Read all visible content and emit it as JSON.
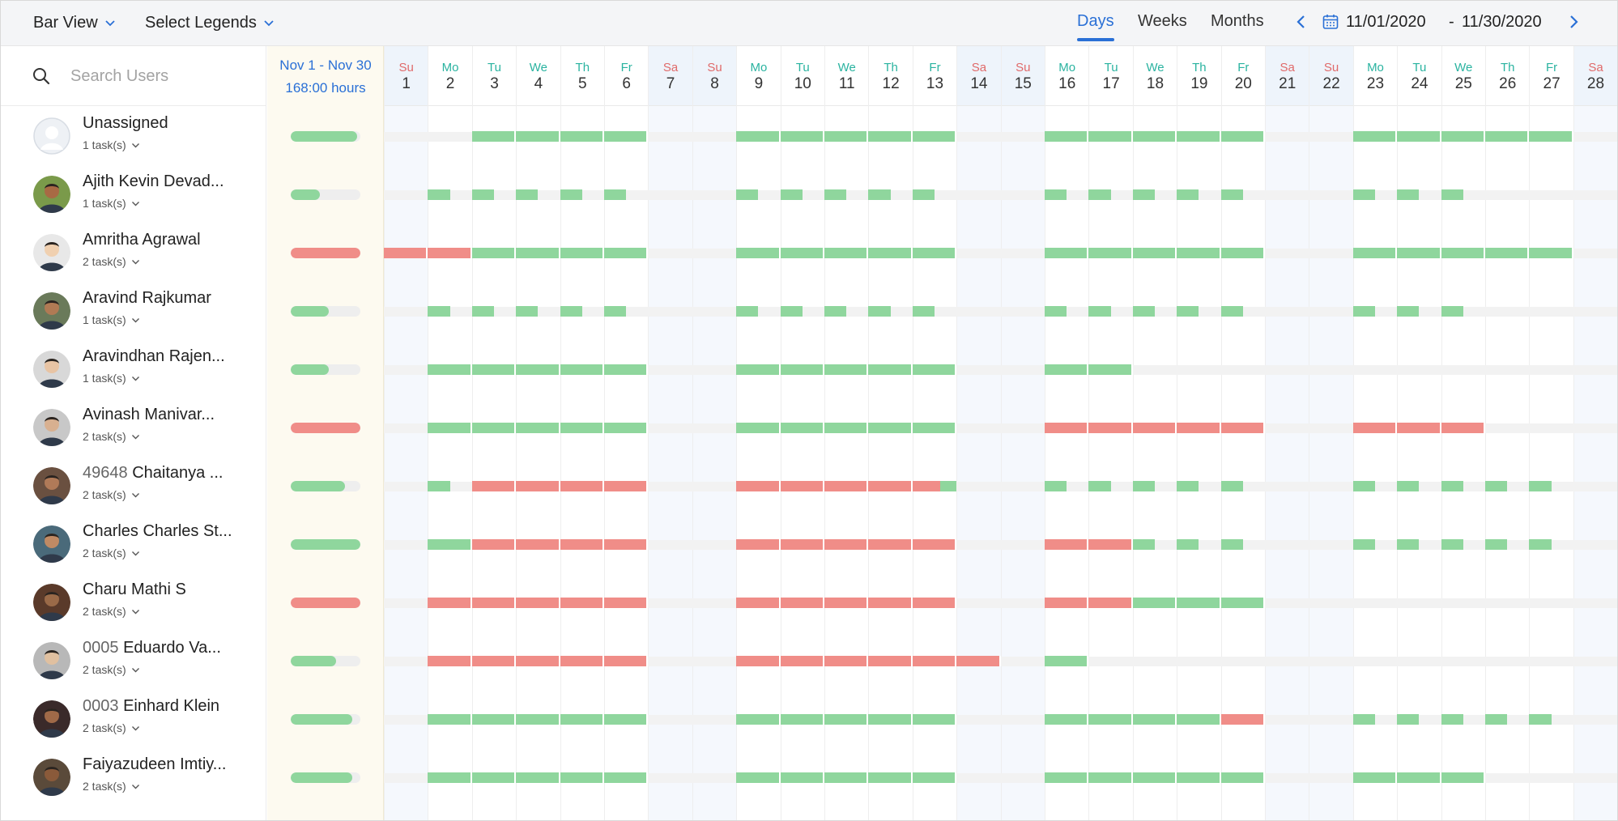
{
  "toolbar": {
    "view_label": "Bar View",
    "legends_label": "Select Legends",
    "tabs": [
      {
        "label": "Days",
        "active": true
      },
      {
        "label": "Weeks",
        "active": false
      },
      {
        "label": "Months",
        "active": false
      }
    ],
    "date_start": "11/01/2020",
    "date_sep": "-",
    "date_end": "11/30/2020",
    "accent_color": "#2a70d6"
  },
  "search": {
    "placeholder": "Search Users"
  },
  "summary": {
    "range": "Nov 1 - Nov 30",
    "hours": "168:00 hours"
  },
  "colors": {
    "ok": "#8fd69d",
    "over": "#f08d88",
    "track": "#f2f2f2",
    "weekday_header": "#2ab3a0",
    "weekend_header": "#e06a6a"
  },
  "days": [
    {
      "dn": "Su",
      "dd": "1",
      "weekend": true
    },
    {
      "dn": "Mo",
      "dd": "2",
      "weekend": false
    },
    {
      "dn": "Tu",
      "dd": "3",
      "weekend": false
    },
    {
      "dn": "We",
      "dd": "4",
      "weekend": false
    },
    {
      "dn": "Th",
      "dd": "5",
      "weekend": false
    },
    {
      "dn": "Fr",
      "dd": "6",
      "weekend": false
    },
    {
      "dn": "Sa",
      "dd": "7",
      "weekend": true
    },
    {
      "dn": "Su",
      "dd": "8",
      "weekend": true
    },
    {
      "dn": "Mo",
      "dd": "9",
      "weekend": false
    },
    {
      "dn": "Tu",
      "dd": "10",
      "weekend": false
    },
    {
      "dn": "We",
      "dd": "11",
      "weekend": false
    },
    {
      "dn": "Th",
      "dd": "12",
      "weekend": false
    },
    {
      "dn": "Fr",
      "dd": "13",
      "weekend": false
    },
    {
      "dn": "Sa",
      "dd": "14",
      "weekend": true
    },
    {
      "dn": "Su",
      "dd": "15",
      "weekend": true
    },
    {
      "dn": "Mo",
      "dd": "16",
      "weekend": false
    },
    {
      "dn": "Tu",
      "dd": "17",
      "weekend": false
    },
    {
      "dn": "We",
      "dd": "18",
      "weekend": false
    },
    {
      "dn": "Th",
      "dd": "19",
      "weekend": false
    },
    {
      "dn": "Fr",
      "dd": "20",
      "weekend": false
    },
    {
      "dn": "Sa",
      "dd": "21",
      "weekend": true
    },
    {
      "dn": "Su",
      "dd": "22",
      "weekend": true
    },
    {
      "dn": "Mo",
      "dd": "23",
      "weekend": false
    },
    {
      "dn": "Tu",
      "dd": "24",
      "weekend": false
    },
    {
      "dn": "We",
      "dd": "25",
      "weekend": false
    },
    {
      "dn": "Th",
      "dd": "26",
      "weekend": false
    },
    {
      "dn": "Fr",
      "dd": "27",
      "weekend": false
    },
    {
      "dn": "Sa",
      "dd": "28",
      "weekend": true
    }
  ],
  "users": [
    {
      "id": "",
      "name": "Unassigned",
      "tasks": "1 task(s)",
      "avatar": "placeholder",
      "summary_fill": 0.95,
      "summary_status": "ok",
      "days": [
        "",
        "",
        "ok",
        "ok",
        "ok",
        "ok",
        "",
        "",
        "ok",
        "ok",
        "ok",
        "ok",
        "ok",
        "",
        "",
        "ok",
        "ok",
        "ok",
        "ok",
        "ok",
        "",
        "",
        "ok",
        "ok",
        "ok",
        "ok",
        "ok",
        ""
      ]
    },
    {
      "id": "",
      "name": "Ajith Kevin Devad...",
      "tasks": "1 task(s)",
      "avatar": "photo",
      "summary_fill": 0.42,
      "summary_status": "ok",
      "days": [
        "",
        "ok-p",
        "ok-p",
        "ok-p",
        "ok-p",
        "ok-p",
        "",
        "",
        "ok-p",
        "ok-p",
        "ok-p",
        "ok-p",
        "ok-p",
        "",
        "",
        "ok-p",
        "ok-p",
        "ok-p",
        "ok-p",
        "ok-p",
        "",
        "",
        "ok-p",
        "ok-p",
        "ok-p",
        "",
        "",
        ""
      ]
    },
    {
      "id": "",
      "name": "Amritha Agrawal",
      "tasks": "2 task(s)",
      "avatar": "photo",
      "summary_fill": 1.0,
      "summary_status": "over",
      "days": [
        "over",
        "over",
        "ok",
        "ok",
        "ok",
        "ok",
        "",
        "",
        "ok",
        "ok",
        "ok",
        "ok",
        "ok",
        "",
        "",
        "ok",
        "ok",
        "ok",
        "ok",
        "ok",
        "",
        "",
        "ok",
        "ok",
        "ok",
        "ok",
        "ok",
        ""
      ]
    },
    {
      "id": "",
      "name": "Aravind Rajkumar",
      "tasks": "1 task(s)",
      "avatar": "photo",
      "summary_fill": 0.55,
      "summary_status": "ok",
      "days": [
        "",
        "ok-p",
        "ok-p",
        "ok-p",
        "ok-p",
        "ok-p",
        "",
        "",
        "ok-p",
        "ok-p",
        "ok-p",
        "ok-p",
        "ok-p",
        "",
        "",
        "ok-p",
        "ok-p",
        "ok-p",
        "ok-p",
        "ok-p",
        "",
        "",
        "ok-p",
        "ok-p",
        "ok-p",
        "",
        "",
        ""
      ]
    },
    {
      "id": "",
      "name": "Aravindhan Rajen...",
      "tasks": "1 task(s)",
      "avatar": "photo",
      "summary_fill": 0.55,
      "summary_status": "ok",
      "days": [
        "",
        "ok",
        "ok",
        "ok",
        "ok",
        "ok",
        "",
        "",
        "ok",
        "ok",
        "ok",
        "ok",
        "ok",
        "",
        "",
        "ok",
        "ok",
        "",
        "",
        "",
        "",
        "",
        "",
        "",
        "",
        "",
        "",
        ""
      ]
    },
    {
      "id": "",
      "name": "Avinash Manivar...",
      "tasks": "2 task(s)",
      "avatar": "photo",
      "summary_fill": 1.0,
      "summary_status": "over",
      "days": [
        "",
        "ok",
        "ok",
        "ok",
        "ok",
        "ok",
        "",
        "",
        "ok",
        "ok",
        "ok",
        "ok",
        "ok",
        "",
        "",
        "over",
        "over",
        "over",
        "over",
        "over",
        "",
        "",
        "over",
        "over",
        "over",
        "",
        "",
        ""
      ]
    },
    {
      "id": "49648",
      "name": "Chaitanya ...",
      "tasks": "2 task(s)",
      "avatar": "photo",
      "summary_fill": 0.78,
      "summary_status": "ok",
      "days": [
        "",
        "ok-p",
        "over",
        "over",
        "over",
        "over",
        "",
        "",
        "over",
        "over",
        "over",
        "over",
        "over-ok",
        "",
        "",
        "ok-p",
        "ok-p",
        "ok-p",
        "ok-p",
        "ok-p",
        "",
        "",
        "ok-p",
        "ok-p",
        "ok-p",
        "ok-p",
        "ok-p",
        ""
      ]
    },
    {
      "id": "",
      "name": "Charles Charles St...",
      "tasks": "2 task(s)",
      "avatar": "photo",
      "summary_fill": 1.0,
      "summary_status": "ok",
      "days": [
        "",
        "ok",
        "over",
        "over",
        "over",
        "over",
        "",
        "",
        "over",
        "over",
        "over",
        "over",
        "over",
        "",
        "",
        "over",
        "over",
        "ok-p",
        "ok-p",
        "ok-p",
        "",
        "",
        "ok-p",
        "ok-p",
        "ok-p",
        "ok-p",
        "ok-p",
        ""
      ]
    },
    {
      "id": "",
      "name": "Charu Mathi S",
      "tasks": "2 task(s)",
      "avatar": "photo",
      "summary_fill": 1.0,
      "summary_status": "over",
      "days": [
        "",
        "over",
        "over",
        "over",
        "over",
        "over",
        "",
        "",
        "over",
        "over",
        "over",
        "over",
        "over",
        "",
        "",
        "over",
        "over",
        "ok",
        "ok",
        "ok",
        "",
        "",
        "",
        "",
        "",
        "",
        "",
        ""
      ]
    },
    {
      "id": "0005",
      "name": "Eduardo Va...",
      "tasks": "2 task(s)",
      "avatar": "photo",
      "summary_fill": 0.65,
      "summary_status": "ok",
      "days": [
        "",
        "over",
        "over",
        "over",
        "over",
        "over",
        "",
        "",
        "over",
        "over",
        "over",
        "over",
        "over",
        "over",
        "",
        "ok",
        "",
        "",
        "",
        "",
        "",
        "",
        "",
        "",
        "",
        "",
        "",
        ""
      ]
    },
    {
      "id": "0003",
      "name": "Einhard Klein",
      "tasks": "2 task(s)",
      "avatar": "photo",
      "summary_fill": 0.88,
      "summary_status": "ok",
      "days": [
        "",
        "ok",
        "ok",
        "ok",
        "ok",
        "ok",
        "",
        "",
        "ok",
        "ok",
        "ok",
        "ok",
        "ok",
        "",
        "",
        "ok",
        "ok",
        "ok",
        "ok",
        "over",
        "",
        "",
        "ok-p",
        "ok-p",
        "ok-p",
        "ok-p",
        "ok-p",
        ""
      ]
    },
    {
      "id": "",
      "name": "Faiyazudeen Imtiy...",
      "tasks": "2 task(s)",
      "avatar": "photo",
      "summary_fill": 0.88,
      "summary_status": "ok",
      "days": [
        "",
        "ok",
        "ok",
        "ok",
        "ok",
        "ok",
        "",
        "",
        "ok",
        "ok",
        "ok",
        "ok",
        "ok",
        "",
        "",
        "ok",
        "ok",
        "ok",
        "ok",
        "ok",
        "",
        "",
        "ok",
        "ok",
        "ok",
        "",
        "",
        ""
      ]
    }
  ]
}
